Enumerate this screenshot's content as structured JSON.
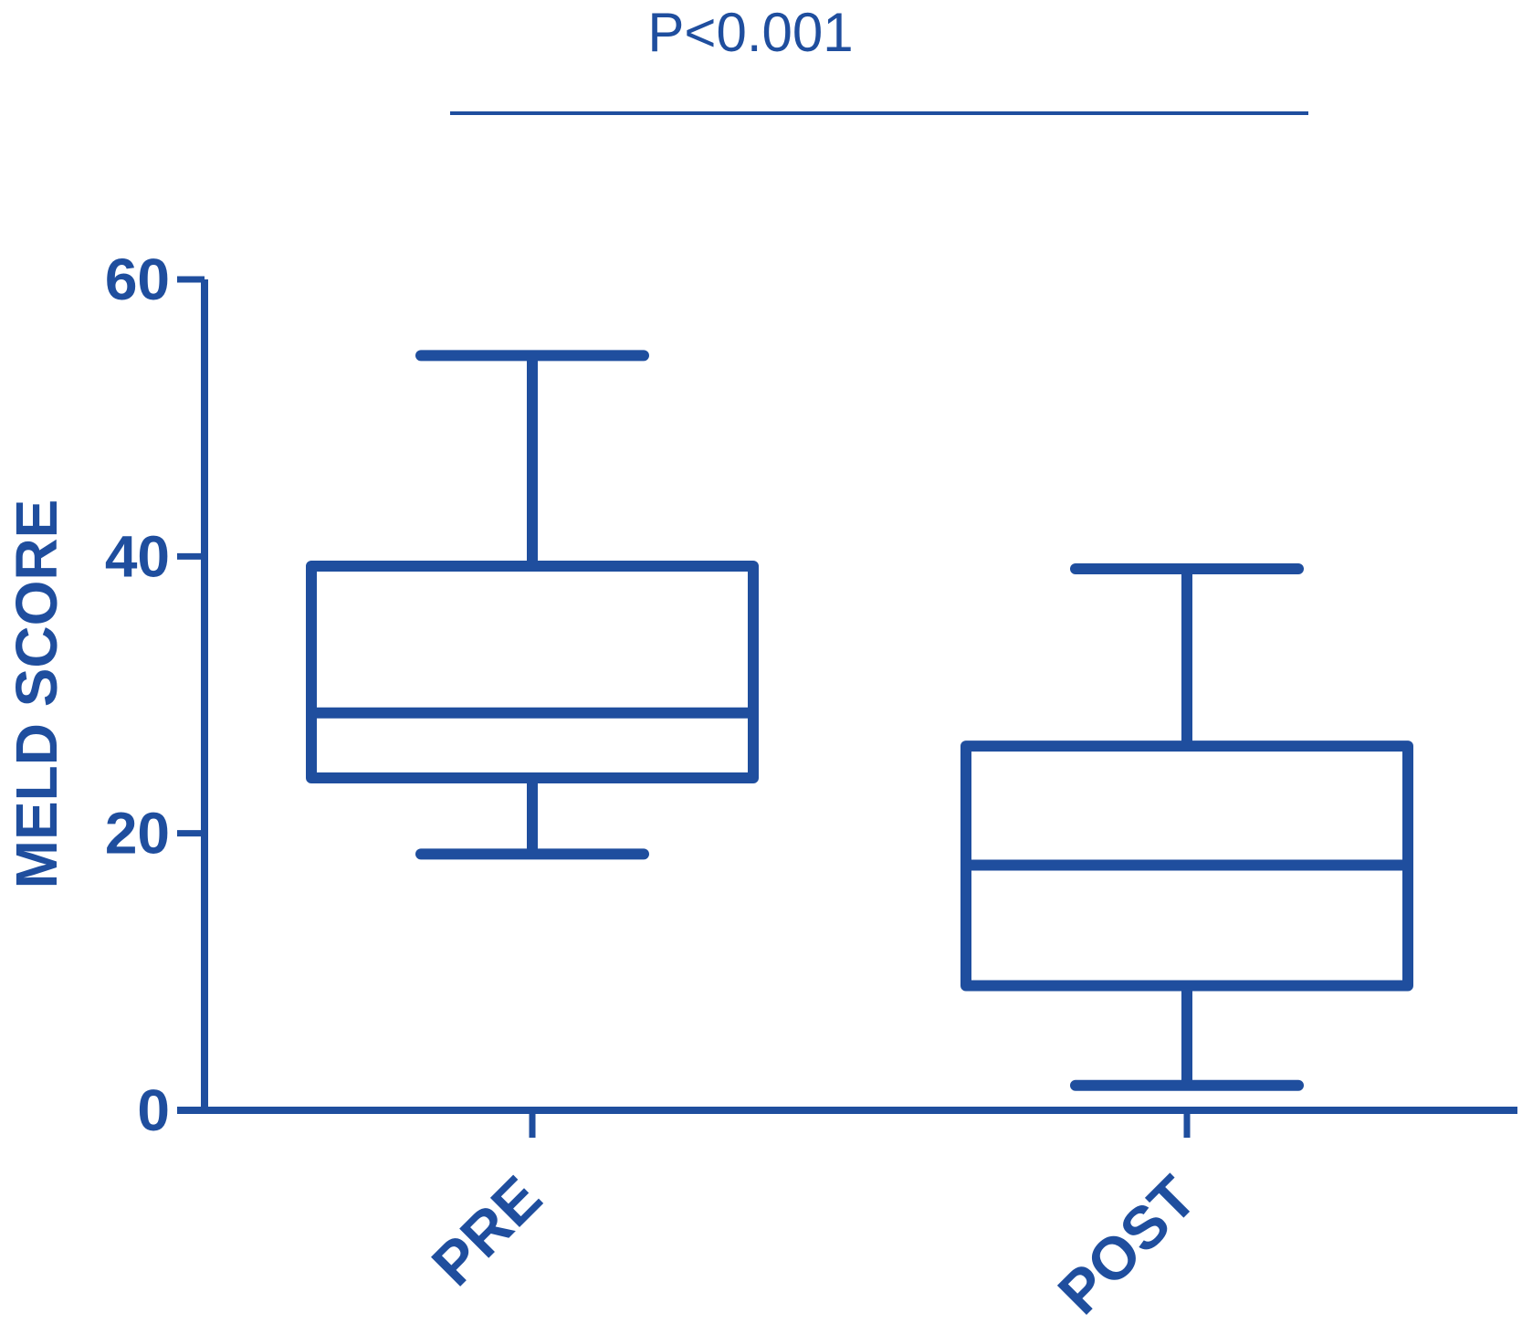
{
  "colors": {
    "primary": "#1f4e9e"
  },
  "chart_data": {
    "type": "box",
    "categories": [
      "PRE",
      "POST"
    ],
    "boxes": [
      {
        "category": "PRE",
        "whisker_low": 18.5,
        "q1": 24,
        "median": 28.7,
        "q3": 39.3,
        "whisker_high": 54.5
      },
      {
        "category": "POST",
        "whisker_low": 1.8,
        "q1": 9,
        "median": 17.7,
        "q3": 26.3,
        "whisker_high": 39.1
      }
    ],
    "ylabel": "MELD SCORE",
    "ylim": [
      0,
      60
    ],
    "yticks": [
      0,
      20,
      40,
      60
    ],
    "annotation": {
      "text": "P<0.001",
      "spans": [
        "PRE",
        "POST"
      ]
    },
    "grid": false,
    "legend": "none"
  }
}
